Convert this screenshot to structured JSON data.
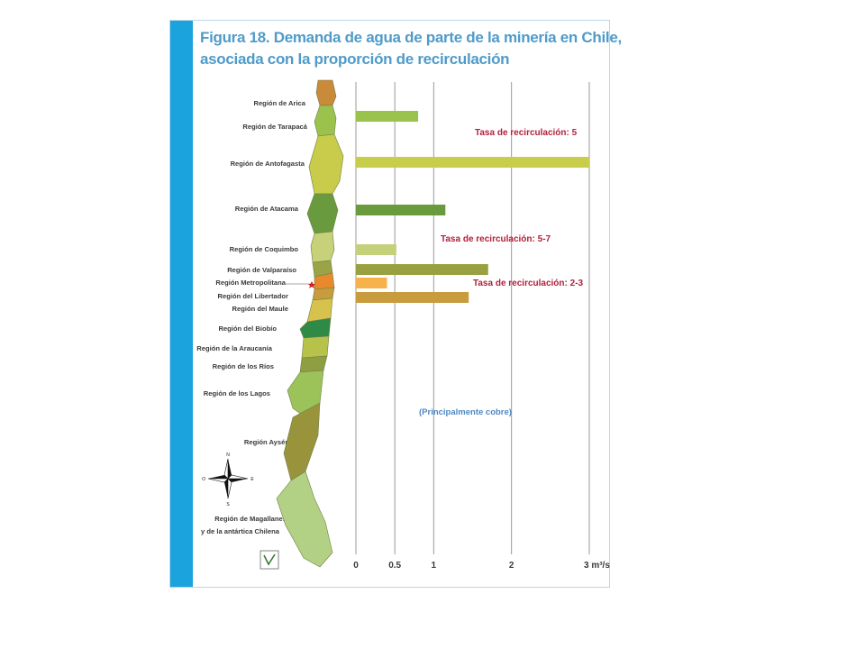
{
  "title": {
    "line1": "Figura 18. Demanda de agua de parte de la minería en Chile,",
    "line2": "asociada con la proporción de recirculación"
  },
  "regions": [
    "Región de Arica",
    "Región de Tarapacá",
    "Región de Antofagasta",
    "Región de Atacama",
    "Región de Coquimbo",
    "Región de Valparaíso",
    "Región Metropolitana",
    "Región del Libertador",
    "Región del Maule",
    "Región del Biobío",
    "Región de la Araucanía",
    "Región de los Ríos",
    "Región de los Lagos",
    "Región Aysén",
    "Región de Magallanes",
    "y de la antártica Chilena"
  ],
  "rate_labels": [
    "Tasa de recirculación: 5",
    "Tasa de recirculación: 5-7",
    "Tasa de recirculación: 2-3"
  ],
  "footnote": "(Principalmente cobre)",
  "compass": {
    "letters": [
      "N",
      "S",
      "E",
      "O"
    ]
  },
  "chart_data": {
    "type": "bar",
    "orientation": "horizontal",
    "unit": "m³/s",
    "xlim": [
      0,
      3
    ],
    "x_ticks": [
      0,
      0.5,
      1,
      2,
      3
    ],
    "x_tick_labels": [
      "0",
      "0.5",
      "1",
      "2",
      "3 m³/s"
    ],
    "categories": [
      "Región de Tarapacá",
      "Región de Antofagasta",
      "Región de Atacama",
      "Región de Coquimbo",
      "Región de Valparaíso",
      "Región Metropolitana",
      "Región del Libertador"
    ],
    "values": [
      0.8,
      3.0,
      1.15,
      0.52,
      1.7,
      0.4,
      1.45
    ],
    "colors": [
      "#99c34c",
      "#c9ce4a",
      "#6a9a3e",
      "#c4d07a",
      "#98a040",
      "#f7b24c",
      "#c89b3c"
    ],
    "grid": "vertical"
  }
}
